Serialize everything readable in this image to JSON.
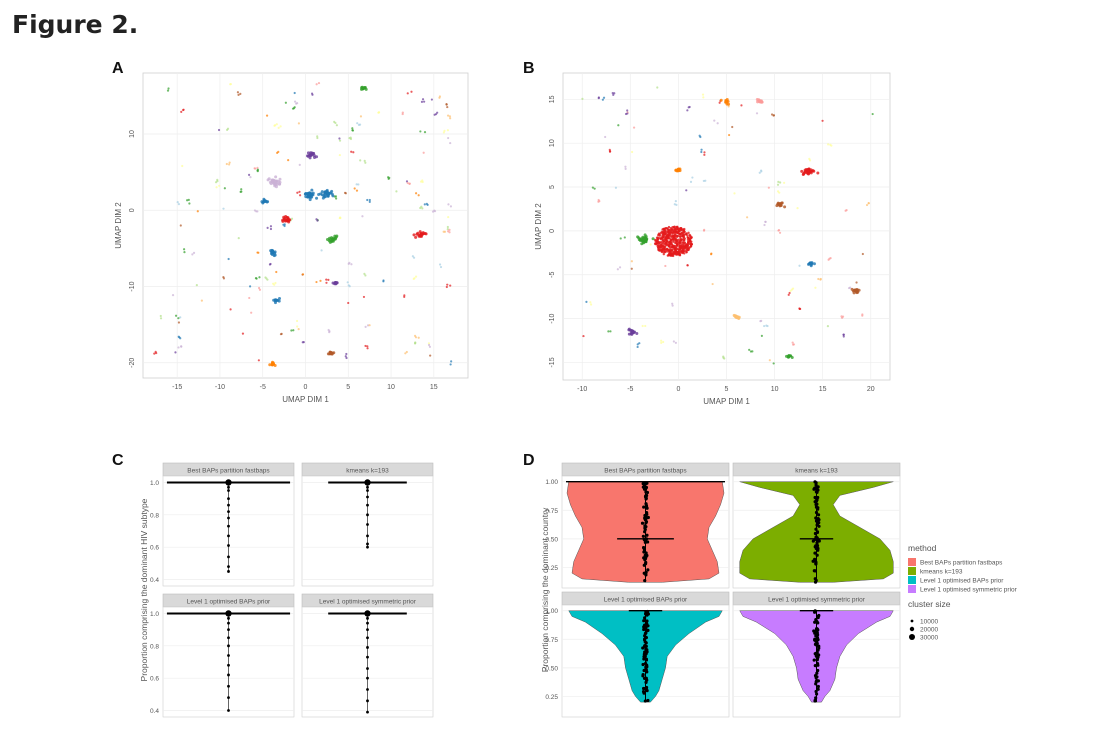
{
  "figure_title": "Figure 2.",
  "panel_letters": {
    "A": "A",
    "B": "B",
    "C": "C",
    "D": "D"
  },
  "colors": {
    "best_baps": "#F8766D",
    "kmeans": "#7CAE00",
    "level1_baps": "#00BFC4",
    "level1_symmetric": "#C77CFF",
    "strip_bg": "#d9d9d9",
    "point": "#000000"
  },
  "chart_data": [
    {
      "panel": "A",
      "type": "scatter",
      "xlabel": "UMAP DIM 1",
      "ylabel": "UMAP DIM 2",
      "xticks": [
        "-15",
        "-10",
        "-5",
        "0",
        "5",
        "10",
        "15"
      ],
      "yticks": [
        "-20",
        "-10",
        "0",
        "10"
      ],
      "xlim": [
        -19,
        19
      ],
      "ylim": [
        -22,
        18
      ],
      "grid": true,
      "clusters": [
        {
          "x": 2.5,
          "y": 2.2,
          "color": "#1f78b4",
          "size": "large"
        },
        {
          "x": 0.5,
          "y": 2.0,
          "color": "#1f78b4",
          "size": "large"
        },
        {
          "x": -3.6,
          "y": 3.8,
          "color": "#cab2d6",
          "size": "large"
        },
        {
          "x": 0.6,
          "y": 7.2,
          "color": "#6a3d9a",
          "size": "medium"
        },
        {
          "x": -2.1,
          "y": -1.3,
          "color": "#e31a1c",
          "size": "medium"
        },
        {
          "x": -3.8,
          "y": -5.5,
          "color": "#1f78b4",
          "size": "medium"
        },
        {
          "x": 3.2,
          "y": -3.8,
          "color": "#33a02c",
          "size": "medium"
        },
        {
          "x": 13.5,
          "y": -3.2,
          "color": "#e31a1c",
          "size": "medium"
        },
        {
          "x": -3.4,
          "y": -11.8,
          "color": "#1f78b4",
          "size": "small"
        },
        {
          "x": 6.8,
          "y": 16.0,
          "color": "#33a02c",
          "size": "small"
        },
        {
          "x": -4.8,
          "y": 1.2,
          "color": "#1f78b4",
          "size": "small"
        },
        {
          "x": 3.5,
          "y": -9.5,
          "color": "#6a3d9a",
          "size": "small"
        },
        {
          "x": -3.8,
          "y": -20.2,
          "color": "#ff7f00",
          "size": "small"
        },
        {
          "x": 3.0,
          "y": -18.8,
          "color": "#b15928",
          "size": "small"
        }
      ]
    },
    {
      "panel": "B",
      "type": "scatter",
      "xlabel": "UMAP DIM 1",
      "ylabel": "UMAP DIM 2",
      "xticks": [
        "-10",
        "-5",
        "0",
        "5",
        "10",
        "15",
        "20"
      ],
      "yticks": [
        "-15",
        "-10",
        "-5",
        "0",
        "5",
        "10",
        "15"
      ],
      "xlim": [
        -12,
        22
      ],
      "ylim": [
        -17,
        18
      ],
      "grid": true,
      "clusters": [
        {
          "x": -0.5,
          "y": -1.2,
          "color": "#e31a1c",
          "size": "huge"
        },
        {
          "x": -3.5,
          "y": -1.0,
          "color": "#33a02c",
          "size": "large"
        },
        {
          "x": 13.5,
          "y": 6.8,
          "color": "#e31a1c",
          "size": "large"
        },
        {
          "x": 10.5,
          "y": 3.0,
          "color": "#b15928",
          "size": "medium"
        },
        {
          "x": 18.5,
          "y": -6.8,
          "color": "#b15928",
          "size": "medium"
        },
        {
          "x": -4.8,
          "y": -11.5,
          "color": "#6a3d9a",
          "size": "medium"
        },
        {
          "x": 5.0,
          "y": 14.8,
          "color": "#ff7f00",
          "size": "small"
        },
        {
          "x": 8.5,
          "y": 14.8,
          "color": "#fb9a99",
          "size": "small"
        },
        {
          "x": 0.0,
          "y": 7.0,
          "color": "#ff7f00",
          "size": "small"
        },
        {
          "x": 13.8,
          "y": -3.8,
          "color": "#1f78b4",
          "size": "small"
        },
        {
          "x": 11.5,
          "y": -14.3,
          "color": "#33a02c",
          "size": "small"
        },
        {
          "x": 6.0,
          "y": -9.8,
          "color": "#fdbf6f",
          "size": "small"
        }
      ]
    },
    {
      "panel": "C",
      "type": "dotplot",
      "ylabel": "Proportion comprising the dominant HIV subtype",
      "yticks": [
        "0.4",
        "0.6",
        "0.8",
        "1.0"
      ],
      "ylim": [
        0.36,
        1.04
      ],
      "facets": [
        {
          "label": "Best BAPs partition fastbaps",
          "median": 1.0,
          "values": [
            1.0,
            0.99,
            0.97,
            0.95,
            0.9,
            0.86,
            0.82,
            0.78,
            0.73,
            0.67,
            0.61,
            0.54,
            0.48,
            0.45
          ]
        },
        {
          "label": "kmeans k=193",
          "median": 1.0,
          "values": [
            1.0,
            0.99,
            0.97,
            0.95,
            0.91,
            0.86,
            0.8,
            0.74,
            0.67,
            0.62,
            0.6
          ]
        },
        {
          "label": "Level 1 optimised BAPs prior",
          "median": 1.0,
          "values": [
            1.0,
            0.99,
            0.97,
            0.94,
            0.9,
            0.85,
            0.8,
            0.74,
            0.68,
            0.62,
            0.55,
            0.48,
            0.4
          ]
        },
        {
          "label": "Level 1 optimised symmetric prior",
          "median": 1.0,
          "values": [
            1.0,
            0.99,
            0.97,
            0.94,
            0.9,
            0.85,
            0.79,
            0.73,
            0.66,
            0.6,
            0.53,
            0.46,
            0.39
          ]
        }
      ]
    },
    {
      "panel": "D",
      "type": "violin",
      "ylabel": "Proportion comprising the dominant country",
      "yticks": [
        "0.25",
        "0.50",
        "0.75",
        "1.00"
      ],
      "ylim": [
        0.07,
        1.05
      ],
      "facets": [
        {
          "label": "Best BAPs partition fastbaps",
          "method": "Best BAPs partition fastbaps",
          "median": 0.5
        },
        {
          "label": "kmeans k=193",
          "method": "kmeans k=193",
          "median": 0.5
        },
        {
          "label": "Level 1 optimised BAPs prior",
          "method": "Level 1 optimised BAPs prior",
          "median": 1.0
        },
        {
          "label": "Level 1 optimised symmetric prior",
          "method": "Level 1 optimised symmetric prior",
          "median": 1.0
        }
      ],
      "legend": {
        "method_title": "method",
        "methods": [
          "Best BAPs partition fastbaps",
          "kmeans k=193",
          "Level 1 optimised BAPs prior",
          "Level 1 optimised symmetric prior"
        ],
        "size_title": "cluster size",
        "sizes": [
          "10000",
          "20000",
          "30000"
        ],
        "placement": "right"
      }
    }
  ]
}
